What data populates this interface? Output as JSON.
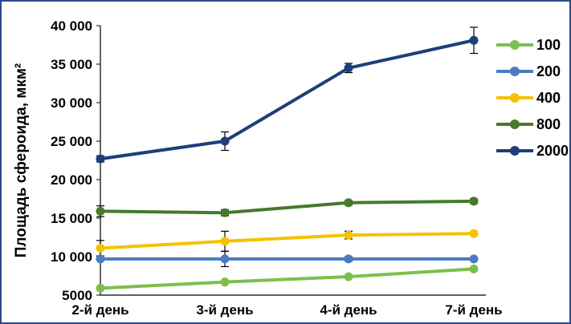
{
  "chart_data": {
    "type": "line",
    "categories": [
      "2-й день",
      "3-й день",
      "4-й день",
      "7-й день"
    ],
    "ylabel": "Площадь сфероида, мкм²",
    "ylim": [
      5000,
      40000
    ],
    "ytick_values": [
      5000,
      10000,
      15000,
      20000,
      25000,
      30000,
      35000,
      40000
    ],
    "ytick_labels": [
      "5000",
      "10 000",
      "15 000",
      "20 000",
      "25 000",
      "30 000",
      "35 000",
      "40 000"
    ],
    "legend_position": "right",
    "grid": false,
    "series": [
      {
        "name": "100",
        "color": "#7dbf4e",
        "values": [
          5900,
          6700,
          7400,
          8400
        ],
        "errors": [
          0,
          0,
          0,
          0
        ]
      },
      {
        "name": "200",
        "color": "#4a7cc0",
        "values": [
          9700,
          9700,
          9700,
          9700
        ],
        "errors": [
          0,
          1000,
          300,
          0
        ]
      },
      {
        "name": "400",
        "color": "#f6c100",
        "values": [
          11100,
          12000,
          12800,
          13000
        ],
        "errors": [
          1000,
          1300,
          500,
          0
        ]
      },
      {
        "name": "800",
        "color": "#467a2c",
        "values": [
          15900,
          15700,
          17000,
          17200
        ],
        "errors": [
          700,
          400,
          300,
          300
        ]
      },
      {
        "name": "2000",
        "color": "#1f3f79",
        "values": [
          22700,
          25000,
          34500,
          38100
        ],
        "errors": [
          400,
          1200,
          600,
          1700
        ]
      }
    ]
  }
}
